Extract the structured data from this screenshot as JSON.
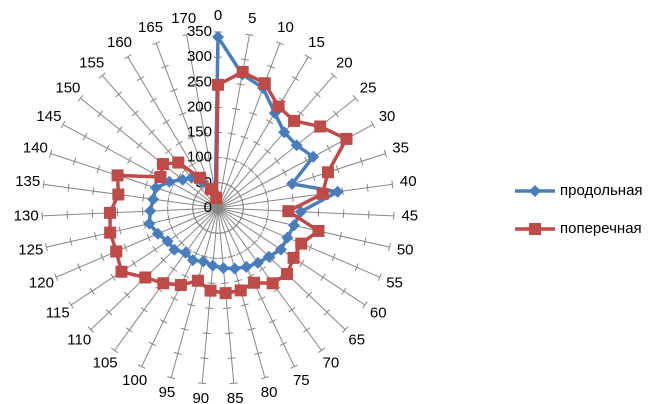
{
  "chart_data": {
    "type": "radar",
    "categories": [
      "0",
      "5",
      "10",
      "15",
      "20",
      "25",
      "30",
      "35",
      "40",
      "45",
      "50",
      "55",
      "60",
      "65",
      "70",
      "75",
      "80",
      "85",
      "90",
      "95",
      "100",
      "105",
      "110",
      "115",
      "120",
      "125",
      "130",
      "135",
      "140",
      "145",
      "150",
      "155",
      "160",
      "165",
      "170"
    ],
    "series": [
      {
        "name": "продольная",
        "color": "#4a7ebb",
        "marker": "diamond",
        "values": [
          340,
          270,
          255,
          220,
          200,
          200,
          215,
          155,
          240,
          165,
          155,
          150,
          150,
          140,
          135,
          130,
          125,
          120,
          115,
          110,
          115,
          110,
          120,
          120,
          130,
          140,
          135,
          130,
          130,
          110,
          90,
          80,
          60,
          40,
          30
        ]
      },
      {
        "name": "поперечная",
        "color": "#be4b48",
        "marker": "square",
        "values": [
          245,
          275,
          265,
          235,
          230,
          260,
          290,
          230,
          210,
          140,
          205,
          180,
          180,
          190,
          185,
          165,
          170,
          170,
          165,
          150,
          170,
          185,
          200,
          230,
          220,
          220,
          215,
          200,
          210,
          130,
          140,
          120,
          70,
          40,
          20
        ]
      }
    ],
    "ylim": [
      0,
      350
    ],
    "yticks": [
      0,
      50,
      100,
      150,
      200,
      250,
      300,
      350
    ],
    "grid": true,
    "legend": "right"
  }
}
